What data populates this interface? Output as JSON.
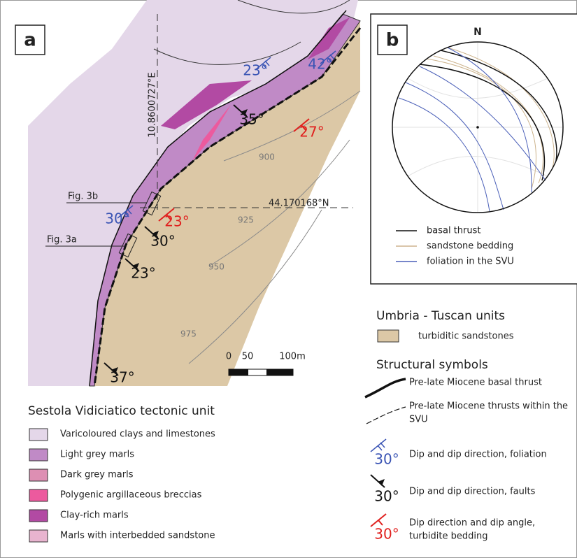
{
  "panel_a": {
    "label": "a",
    "longitude": "10.8600727°E",
    "latitude": "44.170168°N",
    "fig_refs": [
      "Fig. 3b",
      "Fig. 3a"
    ],
    "contours": [
      "900",
      "925",
      "950",
      "975"
    ],
    "dips": [
      {
        "text": "23°",
        "kind": "foliation"
      },
      {
        "text": "42°",
        "kind": "foliation"
      },
      {
        "text": "35°",
        "kind": "fault"
      },
      {
        "text": "27°",
        "kind": "bedding"
      },
      {
        "text": "30°",
        "kind": "foliation"
      },
      {
        "text": "23°",
        "kind": "bedding"
      },
      {
        "text": "30°",
        "kind": "fault"
      },
      {
        "text": "23°",
        "kind": "fault"
      },
      {
        "text": "37°",
        "kind": "fault"
      }
    ],
    "scale": [
      "0",
      "50",
      "100m"
    ]
  },
  "panel_b": {
    "label": "b",
    "north": "N",
    "legend": [
      {
        "text": "basal thrust",
        "color": "#111111"
      },
      {
        "text": "sandstone bedding",
        "color": "#cdb48e"
      },
      {
        "text": "foliation in the SVU",
        "color": "#4a5fb8"
      }
    ]
  },
  "svu_legend": {
    "title": "Sestola Vidiciatico tectonic unit",
    "items": [
      {
        "text": "Varicoloured clays and limestones",
        "color": "#e4d7e9"
      },
      {
        "text": "Light grey marls",
        "color": "#c08ac6"
      },
      {
        "text": "Dark grey marls",
        "color": "#dd8fb3"
      },
      {
        "text": "Polygenic argillaceous breccias",
        "color": "#ec5a9e"
      },
      {
        "text": "Clay-rich marls",
        "color": "#b24aa3"
      },
      {
        "text": "Marls with interbedded sandstone",
        "color": "#e8b4cf"
      }
    ]
  },
  "umbria_legend": {
    "title": "Umbria - Tuscan units",
    "items": [
      {
        "text": "turbiditic sandstones",
        "color": "#dcc8a6"
      }
    ]
  },
  "structural_legend": {
    "title": "Structural symbols",
    "items": [
      {
        "text": "Pre-late Miocene basal thrust"
      },
      {
        "text": "Pre-late Miocene thrusts within the",
        "text2": "SVU"
      },
      {
        "symbol": "30°",
        "text": "Dip and dip direction, foliation",
        "color": "#3a54b4"
      },
      {
        "symbol": "30°",
        "text": "Dip and dip direction, faults",
        "color": "#111111"
      },
      {
        "symbol": "30°",
        "text": "Dip direction and dip angle,",
        "text2": "turbidite bedding",
        "color": "#e0201e"
      }
    ]
  }
}
